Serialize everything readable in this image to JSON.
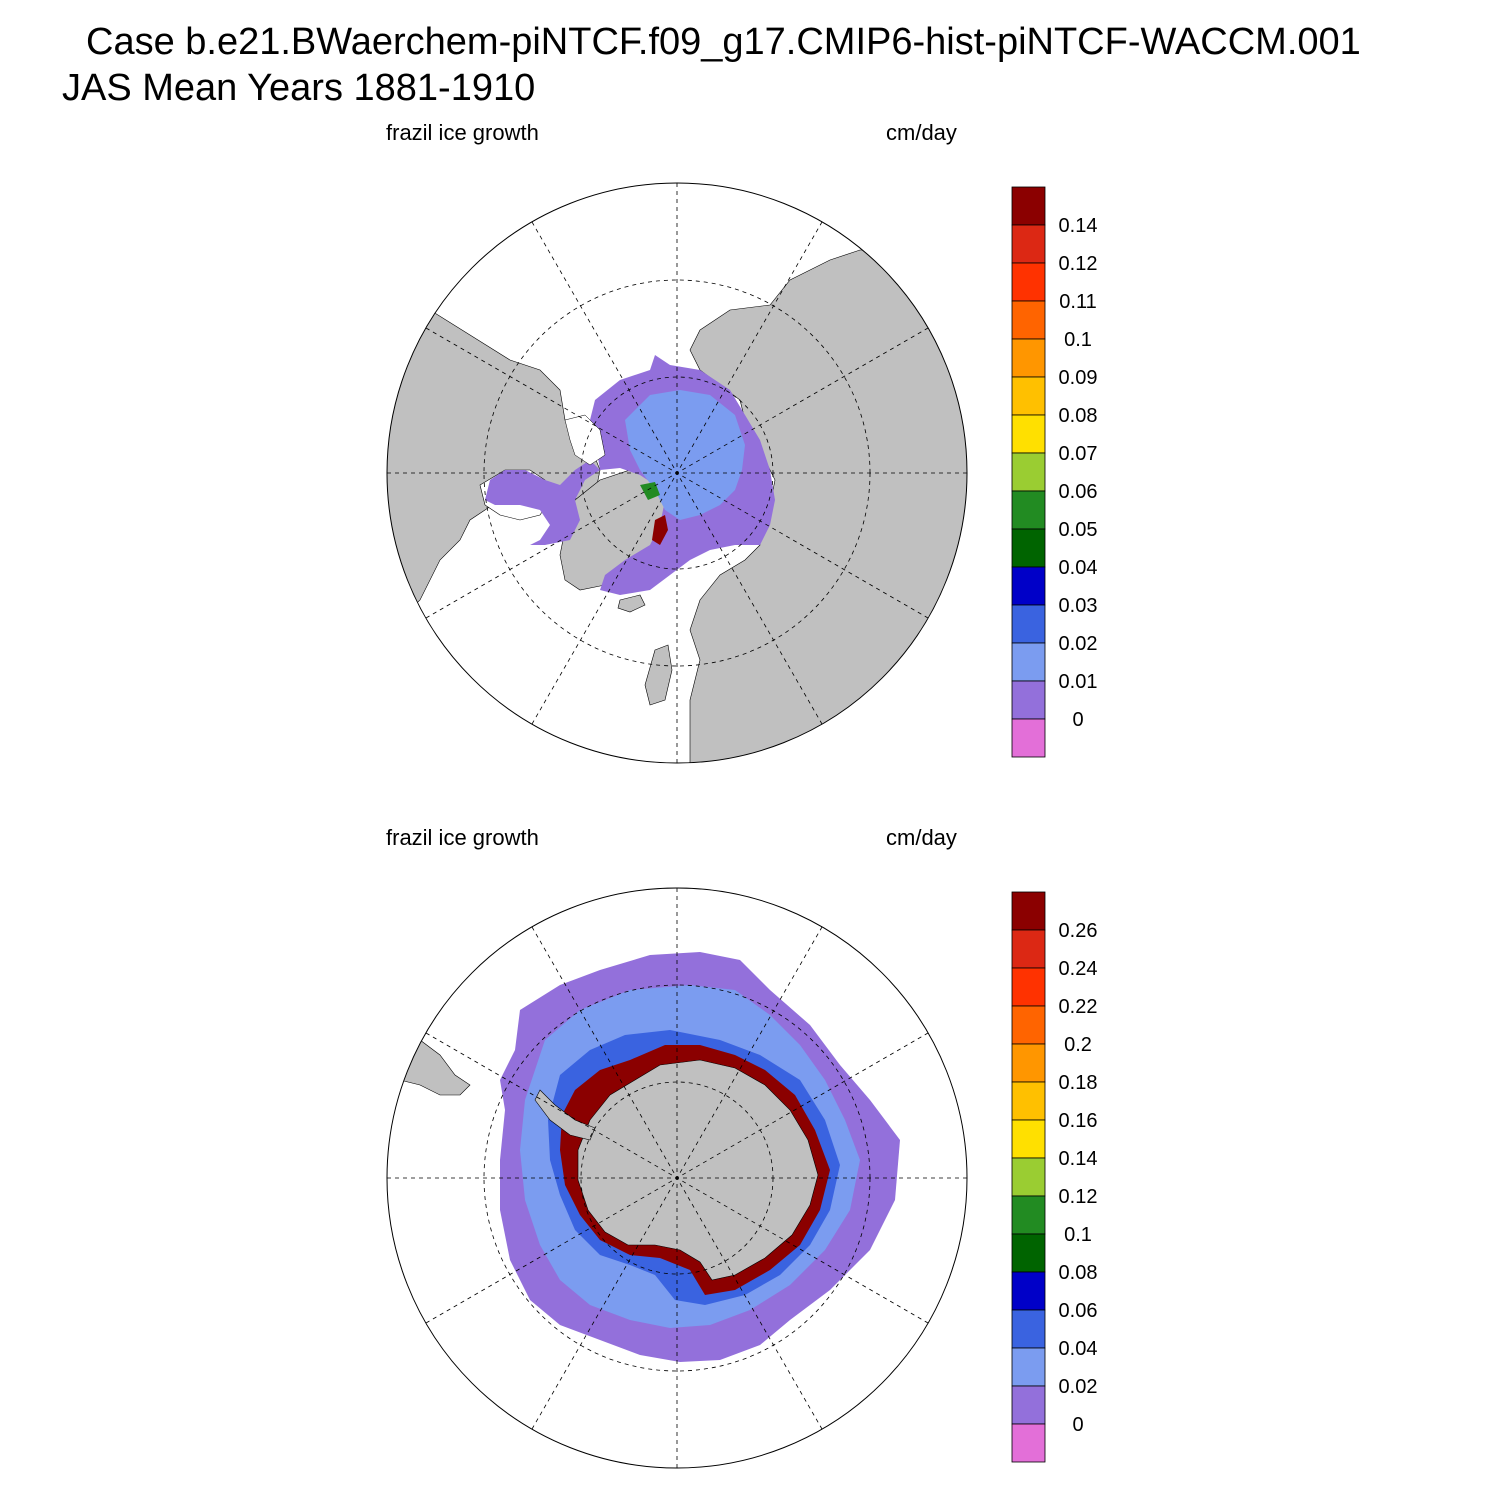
{
  "header": {
    "line1": "Case b.e21.BWaerchem-piNTCF.f09_g17.CMIP6-hist-piNTCF-WACCM.001",
    "line2": "JAS Mean   Years 1881-1910"
  },
  "palette": {
    "land": "#c0c0c0",
    "levels": [
      "#e36fd8",
      "#9370db",
      "#7b9cf0",
      "#3a63e0",
      "#0000c8",
      "#006400",
      "#228b22",
      "#9acd32",
      "#ffe000",
      "#ffc000",
      "#ff9600",
      "#ff6400",
      "#ff3200",
      "#dc2814",
      "#8b0000"
    ]
  },
  "panels": [
    {
      "id": "north",
      "left_label": "frazil ice growth",
      "right_label": "cm/day",
      "hemisphere": "Northern Hemisphere",
      "colorbar_labels": [
        "0",
        "0.01",
        "0.02",
        "0.03",
        "0.04",
        "0.05",
        "0.06",
        "0.07",
        "0.08",
        "0.09",
        "0.1",
        "0.11",
        "0.12",
        "0.14"
      ]
    },
    {
      "id": "south",
      "left_label": "frazil ice growth",
      "right_label": "cm/day",
      "hemisphere": "Southern Hemisphere",
      "colorbar_labels": [
        "0",
        "0.02",
        "0.04",
        "0.06",
        "0.08",
        "0.1",
        "0.12",
        "0.14",
        "0.16",
        "0.18",
        "0.2",
        "0.22",
        "0.24",
        "0.26"
      ]
    }
  ]
}
